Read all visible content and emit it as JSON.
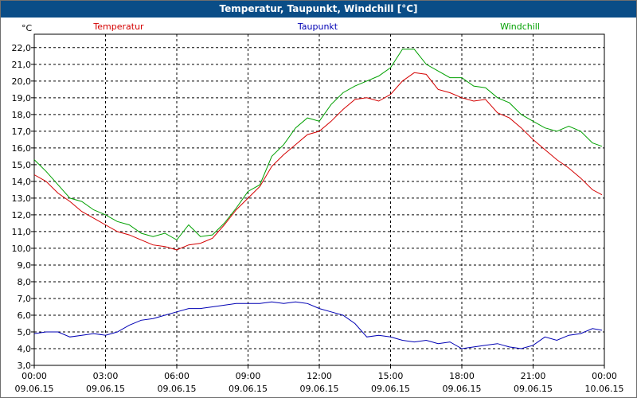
{
  "window": {
    "title": "Temperatur, Taupunkt, Windchill [°C]"
  },
  "colors": {
    "titlebar": "#0a4d87",
    "temperatur": "#d40000",
    "taupunkt": "#0000b4",
    "windchill": "#00a000",
    "grid": "#000000"
  },
  "chart_data": {
    "type": "line",
    "title": "Temperatur, Taupunkt, Windchill [°C]",
    "ylabel": "°C",
    "xlabel": "",
    "ylim": [
      3.0,
      22.8
    ],
    "xlim": [
      0,
      24
    ],
    "grid": true,
    "legend_position": "top",
    "yticks": [
      3.0,
      4.0,
      5.0,
      6.0,
      7.0,
      8.0,
      9.0,
      10.0,
      11.0,
      12.0,
      13.0,
      14.0,
      15.0,
      16.0,
      17.0,
      18.0,
      19.0,
      20.0,
      21.0,
      22.0
    ],
    "ytick_labels": [
      "3,0",
      "4,0",
      "5,0",
      "6,0",
      "7,0",
      "8,0",
      "9,0",
      "10,0",
      "11,0",
      "12,0",
      "13,0",
      "14,0",
      "15,0",
      "16,0",
      "17,0",
      "18,0",
      "19,0",
      "20,0",
      "21,0",
      "22,0"
    ],
    "xticks": [
      {
        "hour": 0,
        "time": "00:00",
        "date": "09.06.15"
      },
      {
        "hour": 3,
        "time": "03:00",
        "date": "09.06.15"
      },
      {
        "hour": 6,
        "time": "06:00",
        "date": "09.06.15"
      },
      {
        "hour": 9,
        "time": "09:00",
        "date": "09.06.15"
      },
      {
        "hour": 12,
        "time": "12:00",
        "date": "09.06.15"
      },
      {
        "hour": 15,
        "time": "15:00",
        "date": "09.06.15"
      },
      {
        "hour": 18,
        "time": "18:00",
        "date": "09.06.15"
      },
      {
        "hour": 21,
        "time": "21:00",
        "date": "09.06.15"
      },
      {
        "hour": 24,
        "time": "00:00",
        "date": "10.06.15"
      }
    ],
    "series": [
      {
        "name": "Temperatur",
        "x": [
          0,
          0.5,
          1,
          1.5,
          2,
          2.5,
          3,
          3.5,
          4,
          4.5,
          5,
          5.5,
          6,
          6.5,
          7,
          7.5,
          8,
          8.5,
          9,
          9.5,
          10,
          10.5,
          11,
          11.5,
          12,
          12.5,
          13,
          13.5,
          14,
          14.5,
          15,
          15.5,
          16,
          16.5,
          17,
          17.5,
          18,
          18.5,
          19,
          19.5,
          20,
          20.5,
          21,
          21.5,
          22,
          22.5,
          23,
          23.5,
          23.9
        ],
        "y": [
          14.4,
          14.0,
          13.3,
          12.8,
          12.2,
          11.8,
          11.4,
          11.0,
          10.8,
          10.5,
          10.2,
          10.1,
          9.9,
          10.2,
          10.3,
          10.6,
          11.4,
          12.3,
          13.0,
          13.7,
          14.9,
          15.6,
          16.2,
          16.8,
          17.0,
          17.6,
          18.3,
          18.9,
          19.0,
          18.8,
          19.2,
          20.0,
          20.5,
          20.4,
          19.5,
          19.3,
          19.0,
          18.8,
          18.9,
          18.1,
          17.8,
          17.2,
          16.5,
          15.9,
          15.3,
          14.8,
          14.2,
          13.5,
          13.2
        ]
      },
      {
        "name": "Taupunkt",
        "x": [
          0,
          0.5,
          1,
          1.5,
          2,
          2.5,
          3,
          3.5,
          4,
          4.5,
          5,
          5.5,
          6,
          6.5,
          7,
          7.5,
          8,
          8.5,
          9,
          9.5,
          10,
          10.5,
          11,
          11.5,
          12,
          12.5,
          13,
          13.5,
          14,
          14.5,
          15,
          15.5,
          16,
          16.5,
          17,
          17.5,
          18,
          18.5,
          19,
          19.5,
          20,
          20.5,
          21,
          21.5,
          22,
          22.5,
          23,
          23.5,
          23.9
        ],
        "y": [
          4.9,
          5.0,
          5.0,
          4.7,
          4.8,
          4.9,
          4.8,
          5.0,
          5.4,
          5.7,
          5.8,
          6.0,
          6.2,
          6.4,
          6.4,
          6.5,
          6.6,
          6.7,
          6.7,
          6.7,
          6.8,
          6.7,
          6.8,
          6.7,
          6.4,
          6.2,
          6.0,
          5.5,
          4.7,
          4.8,
          4.7,
          4.5,
          4.4,
          4.5,
          4.3,
          4.4,
          4.0,
          4.1,
          4.2,
          4.3,
          4.1,
          4.0,
          4.2,
          4.7,
          4.5,
          4.8,
          4.9,
          5.2,
          5.1
        ]
      },
      {
        "name": "Windchill",
        "x": [
          0,
          0.5,
          1,
          1.5,
          2,
          2.5,
          3,
          3.5,
          4,
          4.5,
          5,
          5.5,
          6,
          6.5,
          7,
          7.5,
          8,
          8.5,
          9,
          9.5,
          10,
          10.5,
          11,
          11.5,
          12,
          12.5,
          13,
          13.5,
          14,
          14.5,
          15,
          15.5,
          16,
          16.5,
          17,
          17.5,
          18,
          18.5,
          19,
          19.5,
          20,
          20.5,
          21,
          21.5,
          22,
          22.5,
          23,
          23.5,
          23.9
        ],
        "y": [
          15.3,
          14.6,
          13.8,
          13.0,
          12.8,
          12.3,
          12.0,
          11.6,
          11.4,
          10.9,
          10.7,
          10.9,
          10.5,
          11.4,
          10.7,
          10.8,
          11.5,
          12.4,
          13.4,
          13.8,
          15.5,
          16.2,
          17.2,
          17.8,
          17.6,
          18.6,
          19.3,
          19.7,
          20.0,
          20.3,
          20.8,
          21.9,
          21.9,
          21.0,
          20.6,
          20.2,
          20.2,
          19.7,
          19.6,
          19.0,
          18.7,
          18.0,
          17.6,
          17.2,
          17.0,
          17.3,
          17.0,
          16.3,
          16.1
        ]
      }
    ]
  }
}
